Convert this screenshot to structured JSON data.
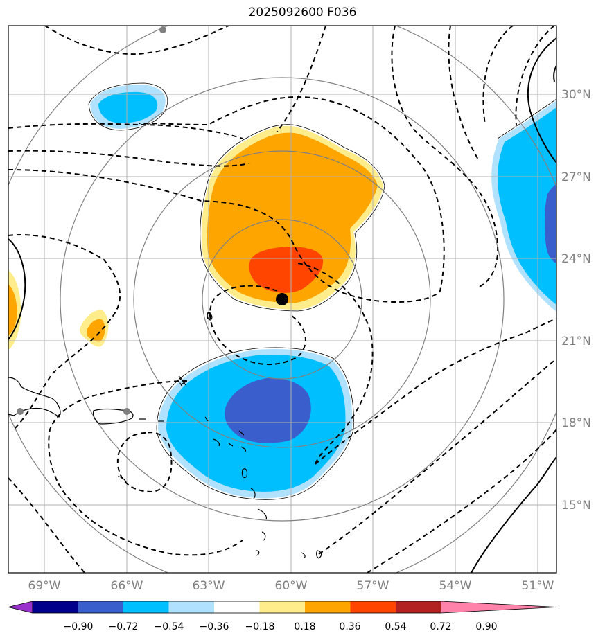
{
  "title": "2025092600 F036",
  "map": {
    "lon_labels": [
      "69°W",
      "66°W",
      "63°W",
      "60°W",
      "57°W",
      "54°W",
      "51°W"
    ],
    "lat_labels": [
      "30°N",
      "27°N",
      "24°N",
      "21°N",
      "18°N",
      "15°N"
    ],
    "contour_labels": [
      "0",
      "-1"
    ]
  },
  "colorbar": {
    "tick_labels": [
      "−0.90",
      "−0.72",
      "−0.54",
      "−0.36",
      "−0.18",
      "0.18",
      "0.36",
      "0.54",
      "0.72",
      "0.90"
    ],
    "colors": [
      "#9932cc",
      "#00008b",
      "#3a5fcd",
      "#00bfff",
      "#b0e2ff",
      "#ffffff",
      "#ffec8b",
      "#ffa500",
      "#ff4500",
      "#b22222",
      "#ff82ab"
    ]
  }
}
